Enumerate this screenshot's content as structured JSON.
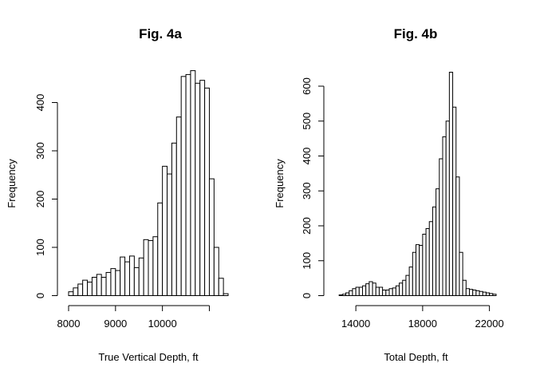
{
  "chart_data": [
    {
      "type": "bar",
      "title": "Fig. 4a",
      "xlabel": "True Vertical Depth, ft",
      "ylabel": "Frequency",
      "bin_width": 100,
      "bin_start": 8000,
      "values": [
        8,
        16,
        24,
        32,
        28,
        38,
        44,
        38,
        48,
        56,
        52,
        80,
        70,
        82,
        58,
        78,
        116,
        114,
        122,
        192,
        268,
        252,
        316,
        370,
        454,
        458,
        466,
        440,
        446,
        430,
        242,
        100,
        36,
        4
      ],
      "x_ticks": [
        8000,
        9000,
        10000,
        11000
      ],
      "x_tick_labels": [
        "8000",
        "9000",
        "10000",
        ""
      ],
      "y_ticks": [
        0,
        100,
        200,
        300,
        400
      ],
      "xlim": [
        8000,
        11400
      ],
      "ylim": [
        0,
        466
      ]
    },
    {
      "type": "bar",
      "title": "Fig. 4b",
      "xlabel": "Total Depth, ft",
      "ylabel": "Frequency",
      "bin_width": 200,
      "bin_start": 12800,
      "values": [
        0,
        2,
        4,
        8,
        14,
        20,
        24,
        24,
        28,
        34,
        40,
        36,
        24,
        24,
        16,
        16,
        20,
        22,
        28,
        36,
        44,
        58,
        82,
        124,
        146,
        144,
        176,
        192,
        212,
        254,
        306,
        392,
        455,
        500,
        640,
        540,
        340,
        124,
        44,
        20,
        18,
        16,
        14,
        12,
        10,
        8,
        6,
        4
      ],
      "x_ticks": [
        14000,
        18000,
        22000
      ],
      "y_ticks": [
        0,
        100,
        200,
        300,
        400,
        500,
        600
      ],
      "xlim": [
        12800,
        22400
      ],
      "ylim": [
        0,
        640
      ]
    }
  ]
}
